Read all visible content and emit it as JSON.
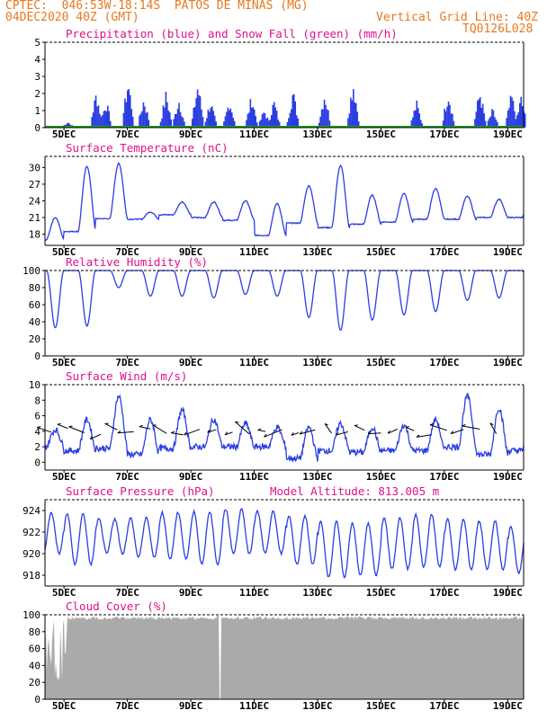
{
  "header": {
    "line1": "CPTEC:  046:53W-18:14S  PATOS DE MINAS (MG)",
    "line2_left": "04DEC2020 40Z (GMT)",
    "line2_right": "Vertical Grid Line: 40Z",
    "line3_right": "TQ0126L028"
  },
  "colors": {
    "header": "#e8781e",
    "title": "#e0108a",
    "line": "#2a3ee0",
    "precip": "#2a3ee0",
    "snow": "#20a020",
    "cloud": "#aaaaaa"
  },
  "chart_data": [
    {
      "type": "bar",
      "title": "Precipitation (blue) and Snow Fall (green) (mm/h)",
      "x_tick_labels": [
        "5DEC",
        "7DEC",
        "9DEC",
        "11DEC",
        "13DEC",
        "15DEC",
        "17DEC",
        "19DEC"
      ],
      "ylim": [
        0,
        5
      ],
      "yticks": [
        0,
        1,
        2,
        3,
        4,
        5
      ],
      "note_values": "hourly precipitation estimated; bursts (day_offset, peak_mm)",
      "series": [
        {
          "name": "Precipitation",
          "bursts": [
            [
              1.1,
              0.4
            ],
            [
              2.0,
              2.4
            ],
            [
              2.3,
              1.8
            ],
            [
              3.0,
              3.2
            ],
            [
              3.5,
              2.0
            ],
            [
              4.2,
              2.3
            ],
            [
              4.6,
              2.0
            ],
            [
              5.2,
              3.0
            ],
            [
              5.6,
              1.8
            ],
            [
              6.2,
              1.9
            ],
            [
              6.9,
              2.1
            ],
            [
              7.3,
              1.2
            ],
            [
              7.6,
              1.8
            ],
            [
              8.2,
              2.5
            ],
            [
              9.2,
              2.4
            ],
            [
              10.1,
              3.2
            ],
            [
              12.1,
              1.7
            ],
            [
              13.1,
              2.5
            ],
            [
              14.1,
              2.5
            ],
            [
              14.5,
              1.2
            ],
            [
              15.1,
              2.2
            ],
            [
              15.4,
              2.0
            ],
            [
              16.1,
              2.0
            ],
            [
              16.5,
              1.7
            ],
            [
              17.1,
              1.8
            ],
            [
              17.6,
              1.9
            ],
            [
              18.1,
              2.0
            ],
            [
              18.6,
              1.8
            ],
            [
              19.1,
              1.2
            ],
            [
              19.6,
              1.5
            ],
            [
              20.1,
              2.0
            ],
            [
              20.6,
              1.3
            ],
            [
              21.1,
              1.5
            ],
            [
              21.4,
              2.7
            ],
            [
              22.1,
              2.0
            ],
            [
              22.6,
              1.7
            ],
            [
              23.0,
              1.8
            ],
            [
              23.3,
              1.8
            ],
            [
              24.1,
              2.0
            ],
            [
              24.6,
              1.5
            ],
            [
              25.1,
              2.0
            ],
            [
              25.5,
              1.2
            ],
            [
              26.0,
              1.6
            ],
            [
              26.3,
              1.3
            ],
            [
              27.0,
              2.3
            ],
            [
              27.3,
              1.4
            ],
            [
              28.1,
              2.0
            ],
            [
              28.6,
              1.5
            ],
            [
              29.1,
              2.3
            ],
            [
              29.5,
              1.3
            ],
            [
              30.0,
              0.7
            ]
          ]
        },
        {
          "name": "Snow Fall",
          "values_all": 0
        }
      ]
    },
    {
      "type": "line",
      "title": "Surface Temperature (nC)",
      "x_tick_labels": [
        "5DEC",
        "7DEC",
        "9DEC",
        "11DEC",
        "13DEC",
        "15DEC",
        "17DEC",
        "19DEC"
      ],
      "ylim": [
        16,
        32
      ],
      "yticks": [
        18,
        21,
        24,
        27,
        30
      ],
      "daily_max": [
        21,
        30.2,
        30.7,
        22.0,
        23.8,
        23.8,
        24.0,
        23.5,
        26.7,
        30.3,
        25.0,
        25.3,
        26.2,
        24.8,
        24.3,
        24.5,
        23.7
      ],
      "daily_min": [
        17,
        18.5,
        20.8,
        20.7,
        21.5,
        21.0,
        20.5,
        17.8,
        20.0,
        19.2,
        19.8,
        20.2,
        20.7,
        20.7,
        21.0,
        21.0,
        21.3
      ]
    },
    {
      "type": "line",
      "title": "Relative Humidity (%)",
      "x_tick_labels": [
        "5DEC",
        "7DEC",
        "9DEC",
        "11DEC",
        "13DEC",
        "15DEC",
        "17DEC",
        "19DEC"
      ],
      "ylim": [
        0,
        100
      ],
      "yticks": [
        0,
        20,
        40,
        60,
        80,
        100
      ],
      "daily_min": [
        33,
        35,
        80,
        70,
        70,
        68,
        72,
        70,
        45,
        30,
        42,
        48,
        52,
        65,
        68,
        70,
        78
      ]
    },
    {
      "type": "line",
      "title": "Surface Wind (m/s)",
      "x_tick_labels": [
        "5DEC",
        "7DEC",
        "9DEC",
        "11DEC",
        "13DEC",
        "15DEC",
        "17DEC",
        "19DEC"
      ],
      "ylim": [
        -1,
        10
      ],
      "yticks": [
        0,
        2,
        4,
        6,
        8,
        10
      ],
      "daily_max": [
        4.2,
        5.5,
        8.5,
        5.5,
        6.7,
        5.5,
        5.0,
        4.5,
        4.5,
        5.0,
        4.5,
        4.8,
        5.5,
        8.5,
        7.0,
        5.5,
        4.0
      ],
      "daily_min": [
        2.0,
        1.5,
        1.8,
        1.0,
        1.8,
        2.0,
        2.0,
        2.0,
        0.5,
        1.5,
        1.3,
        1.5,
        1.5,
        2.0,
        1.0,
        1.5,
        1.5
      ]
    },
    {
      "type": "line",
      "title": "Surface Pressure (hPa)",
      "annotation": "Model Altitude: 813.005 m",
      "x_tick_labels": [
        "5DEC",
        "7DEC",
        "9DEC",
        "11DEC",
        "13DEC",
        "15DEC",
        "17DEC",
        "19DEC"
      ],
      "ylim": [
        917,
        925
      ],
      "yticks": [
        918,
        920,
        922,
        924
      ],
      "daily_max": [
        923.8,
        923.7,
        923.2,
        923.3,
        923.8,
        923.9,
        924.1,
        923.9,
        923.5,
        923.0,
        922.8,
        923.3,
        923.6,
        923.2,
        923.0,
        922.5,
        922.3
      ],
      "daily_min": [
        920.0,
        919.0,
        920.0,
        919.7,
        919.5,
        919.0,
        920.0,
        920.0,
        919.0,
        917.8,
        918.0,
        918.6,
        918.8,
        918.5,
        918.5,
        918.2,
        918.0
      ]
    },
    {
      "type": "area",
      "title": "Cloud Cover (%)",
      "x_tick_labels": [
        "5DEC",
        "7DEC",
        "9DEC",
        "11DEC",
        "13DEC",
        "15DEC",
        "17DEC",
        "19DEC"
      ],
      "ylim": [
        0,
        100
      ],
      "yticks": [
        0,
        20,
        40,
        60,
        80,
        100
      ],
      "typical_value": 98
    }
  ]
}
